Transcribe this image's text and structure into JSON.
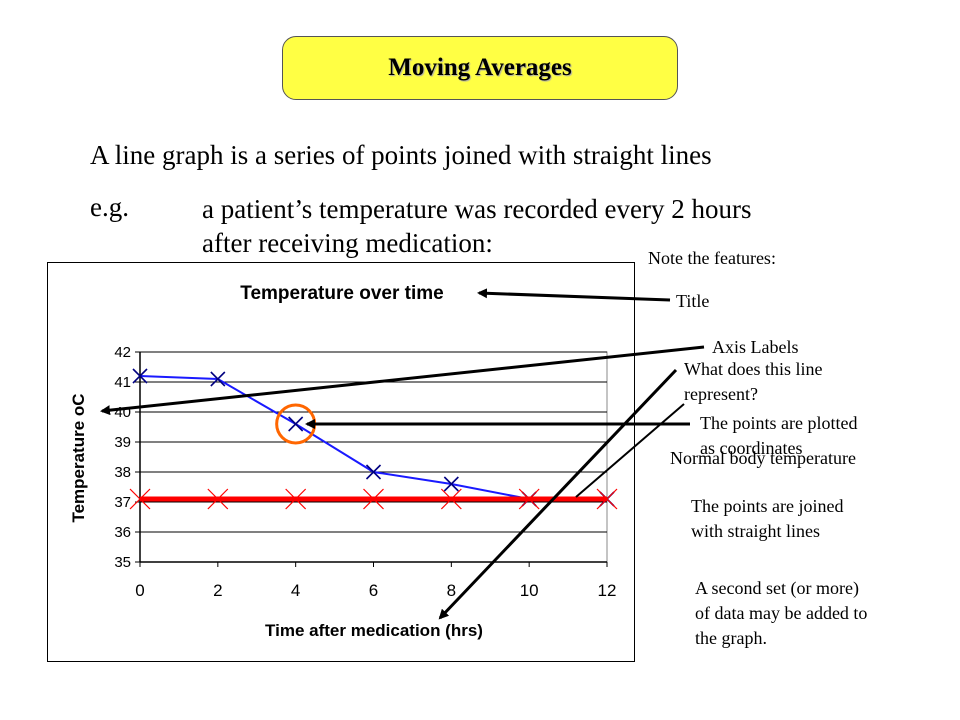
{
  "slide": {
    "title": "Moving Averages",
    "intro": "A line graph is a series of points joined with straight lines",
    "eg_label": "e.g.",
    "eg_line1": "a patient’s temperature was recorded every 2 hours",
    "eg_line2": "after receiving medication:"
  },
  "notes": {
    "heading": "Note the features:",
    "title": "Title",
    "axis_labels": "Axis Labels",
    "what_line_1": "What does this line",
    "what_line_2": "represent?",
    "points_plotted_1": "The points are plotted",
    "points_plotted_2": "as coordinates",
    "normal_body_temp": "Normal body temperature",
    "joined_1": "The points are joined",
    "joined_2": "with straight lines",
    "second_set_1": "A second set (or more)",
    "second_set_2": "of data may be added to",
    "second_set_3": "the graph."
  },
  "chart_data": {
    "type": "line",
    "title": "Temperature over time",
    "xlabel": "Time after medication (hrs)",
    "ylabel": "Temperature oC",
    "x": [
      0,
      2,
      4,
      6,
      8,
      10,
      12
    ],
    "xlim": [
      0,
      12
    ],
    "ylim": [
      35,
      42
    ],
    "xticks": [
      "0",
      "2",
      "4",
      "6",
      "8",
      "10",
      "12"
    ],
    "yticks": [
      "35",
      "36",
      "37",
      "38",
      "39",
      "40",
      "41",
      "42"
    ],
    "grid": true,
    "series": [
      {
        "values": [
          41.2,
          41.1,
          39.6,
          38.0,
          37.6,
          37.1,
          37.1
        ],
        "color": "#1a1aff",
        "marker": "x"
      },
      {
        "values": [
          37.1,
          37.1,
          37.1,
          37.1,
          37.1,
          37.1,
          37.1
        ],
        "color": "#ff0000",
        "marker": "x"
      }
    ],
    "highlight_point": {
      "x": 4,
      "y": 39.6,
      "color": "#ff6600"
    }
  }
}
